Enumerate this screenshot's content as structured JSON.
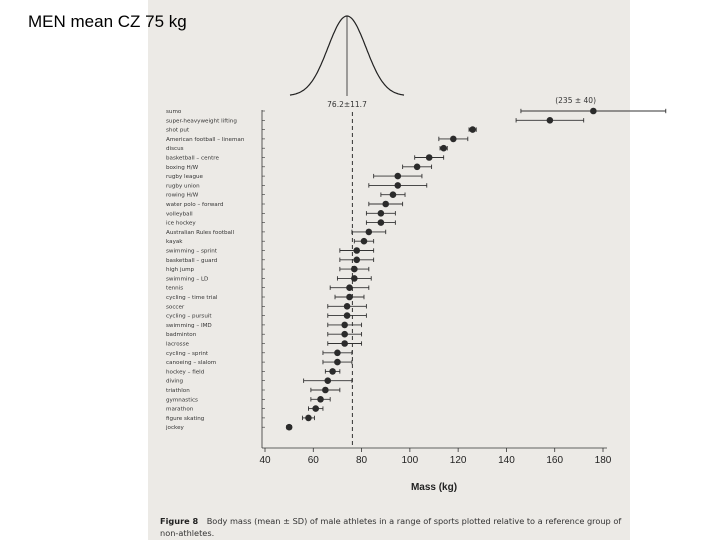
{
  "slide": {
    "title": "MEN mean CZ 75 kg"
  },
  "chart_data": {
    "type": "scatter",
    "xlabel": "Mass (kg)",
    "xlim": [
      40,
      180
    ],
    "xticks": [
      40,
      60,
      80,
      100,
      120,
      140,
      160,
      180
    ],
    "reference_label": "76.2±11.7",
    "reference_mean": 76.2,
    "reference_sd": 11.7,
    "outlier_label": "(235 ± 40)",
    "caption_bold": "Figure 8",
    "caption_text": "Body mass (mean ± SD) of male athletes in a range of sports plotted relative to a reference group of",
    "caption_text2": "non-athletes.",
    "series": [
      {
        "sport": "sumo",
        "mean": 176,
        "sd": 30
      },
      {
        "sport": "super-heavyweight lifting",
        "mean": 158,
        "sd": 14
      },
      {
        "sport": "shot put",
        "mean": 126,
        "sd": 1.5
      },
      {
        "sport": "American football – lineman",
        "mean": 118,
        "sd": 6
      },
      {
        "sport": "discus",
        "mean": 114,
        "sd": 1.5
      },
      {
        "sport": "basketball – centre",
        "mean": 108,
        "sd": 6
      },
      {
        "sport": "boxing H/W",
        "mean": 103,
        "sd": 6
      },
      {
        "sport": "rugby league",
        "mean": 95,
        "sd": 10
      },
      {
        "sport": "rugby union",
        "mean": 95,
        "sd": 12
      },
      {
        "sport": "rowing H/W",
        "mean": 93,
        "sd": 5
      },
      {
        "sport": "water polo – forward",
        "mean": 90,
        "sd": 7
      },
      {
        "sport": "volleyball",
        "mean": 88,
        "sd": 6
      },
      {
        "sport": "ice hockey",
        "mean": 88,
        "sd": 6
      },
      {
        "sport": "Australian Rules football",
        "mean": 83,
        "sd": 7
      },
      {
        "sport": "kayak",
        "mean": 81,
        "sd": 4
      },
      {
        "sport": "swimming – sprint",
        "mean": 78,
        "sd": 7
      },
      {
        "sport": "basketball – guard",
        "mean": 78,
        "sd": 7
      },
      {
        "sport": "high jump",
        "mean": 77,
        "sd": 6
      },
      {
        "sport": "swimming – LD",
        "mean": 77,
        "sd": 7
      },
      {
        "sport": "tennis",
        "mean": 75,
        "sd": 8
      },
      {
        "sport": "cycling – time trial",
        "mean": 75,
        "sd": 6
      },
      {
        "sport": "soccer",
        "mean": 74,
        "sd": 8
      },
      {
        "sport": "cycling – pursuit",
        "mean": 74,
        "sd": 8
      },
      {
        "sport": "swimming – IMD",
        "mean": 73,
        "sd": 7
      },
      {
        "sport": "badminton",
        "mean": 73,
        "sd": 7
      },
      {
        "sport": "lacrosse",
        "mean": 73,
        "sd": 7
      },
      {
        "sport": "cycling – sprint",
        "mean": 70,
        "sd": 6
      },
      {
        "sport": "canoeing – slalom",
        "mean": 70,
        "sd": 6
      },
      {
        "sport": "hockey – field",
        "mean": 68,
        "sd": 3
      },
      {
        "sport": "diving",
        "mean": 66,
        "sd": 10
      },
      {
        "sport": "triathlon",
        "mean": 65,
        "sd": 6
      },
      {
        "sport": "gymnastics",
        "mean": 63,
        "sd": 4
      },
      {
        "sport": "marathon",
        "mean": 61,
        "sd": 3
      },
      {
        "sport": "figure skating",
        "mean": 58,
        "sd": 2.5
      },
      {
        "sport": "jockey",
        "mean": 50,
        "sd": 1
      }
    ]
  }
}
